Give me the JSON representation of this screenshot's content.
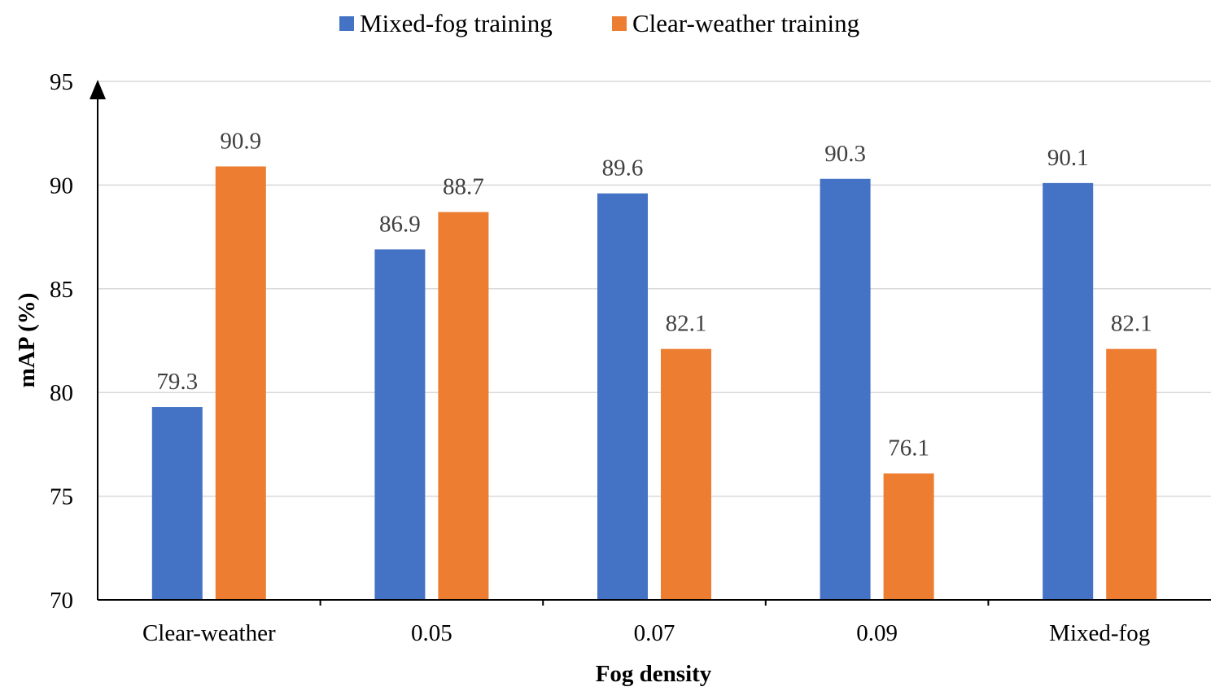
{
  "chart_data": {
    "type": "bar",
    "categories": [
      "Clear-weather",
      "0.05",
      "0.07",
      "0.09",
      "Mixed-fog"
    ],
    "series": [
      {
        "name": "Mixed-fog training",
        "color": "#4472c4",
        "values": [
          79.3,
          86.9,
          89.6,
          90.3,
          90.1
        ]
      },
      {
        "name": "Clear-weather training",
        "color": "#ed7d31",
        "values": [
          90.9,
          88.7,
          82.1,
          76.1,
          82.1
        ]
      }
    ],
    "title": "",
    "xlabel": "Fog density",
    "ylabel": "mAP (%)",
    "ylim": [
      70,
      95
    ],
    "yticks": [
      70,
      75,
      80,
      85,
      90,
      95
    ],
    "grid": true,
    "legend_position": "top-center",
    "data_labels": true
  }
}
